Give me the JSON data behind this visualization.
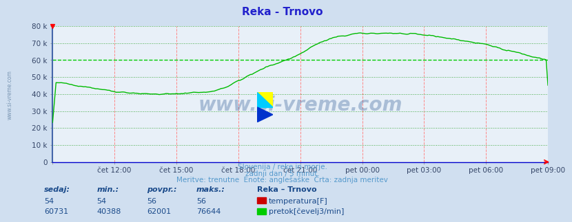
{
  "title": "Reka - Trnovo",
  "bg_color": "#d0dff0",
  "plot_bg_color": "#e8f0f8",
  "xlim": [
    0,
    288
  ],
  "ylim": [
    0,
    80000
  ],
  "yticks": [
    0,
    10000,
    20000,
    30000,
    40000,
    50000,
    60000,
    70000,
    80000
  ],
  "ytick_labels": [
    "0",
    "10 k",
    "20 k",
    "30 k",
    "40 k",
    "50 k",
    "60 k",
    "70 k",
    "80 k"
  ],
  "xtick_positions": [
    0,
    36,
    72,
    108,
    144,
    180,
    216,
    252,
    288
  ],
  "xtick_labels": [
    "",
    "čet 12:00",
    "čet 15:00",
    "čet 18:00",
    "čet 21:00",
    "pet 00:00",
    "pet 03:00",
    "pet 06:00",
    "pet 09:00"
  ],
  "line_color": "#00bb00",
  "watermark_text": "www.si-vreme.com",
  "watermark_color": "#1a4a8a",
  "watermark_alpha": 0.3,
  "subtitle1": "Slovenija / reke in morje.",
  "subtitle2": "zadnji dan / 5 minut.",
  "subtitle3": "Meritve: trenutne  Enote: anglešaške  Črta: zadnja meritev",
  "subtitle_color": "#5599cc",
  "table_header": [
    "sedaj:",
    "min.:",
    "povpr.:",
    "maks.:",
    "Reka – Trnovo"
  ],
  "table_row1": [
    "54",
    "54",
    "56",
    "56",
    "temperatura[F]"
  ],
  "table_row2": [
    "60731",
    "40388",
    "62001",
    "76644",
    "pretok[čevelj3/min]"
  ],
  "table_color": "#1a4a8a",
  "left_label": "www.si-vreme.com",
  "spine_left_color": "#4466aa",
  "spine_bottom_color": "#0000cc",
  "spine_right_color": "#cc0000",
  "vgrid_color": "#ff8888",
  "hgrid_color": "#44aa44",
  "hgrid_dash_color": "#00cc00"
}
